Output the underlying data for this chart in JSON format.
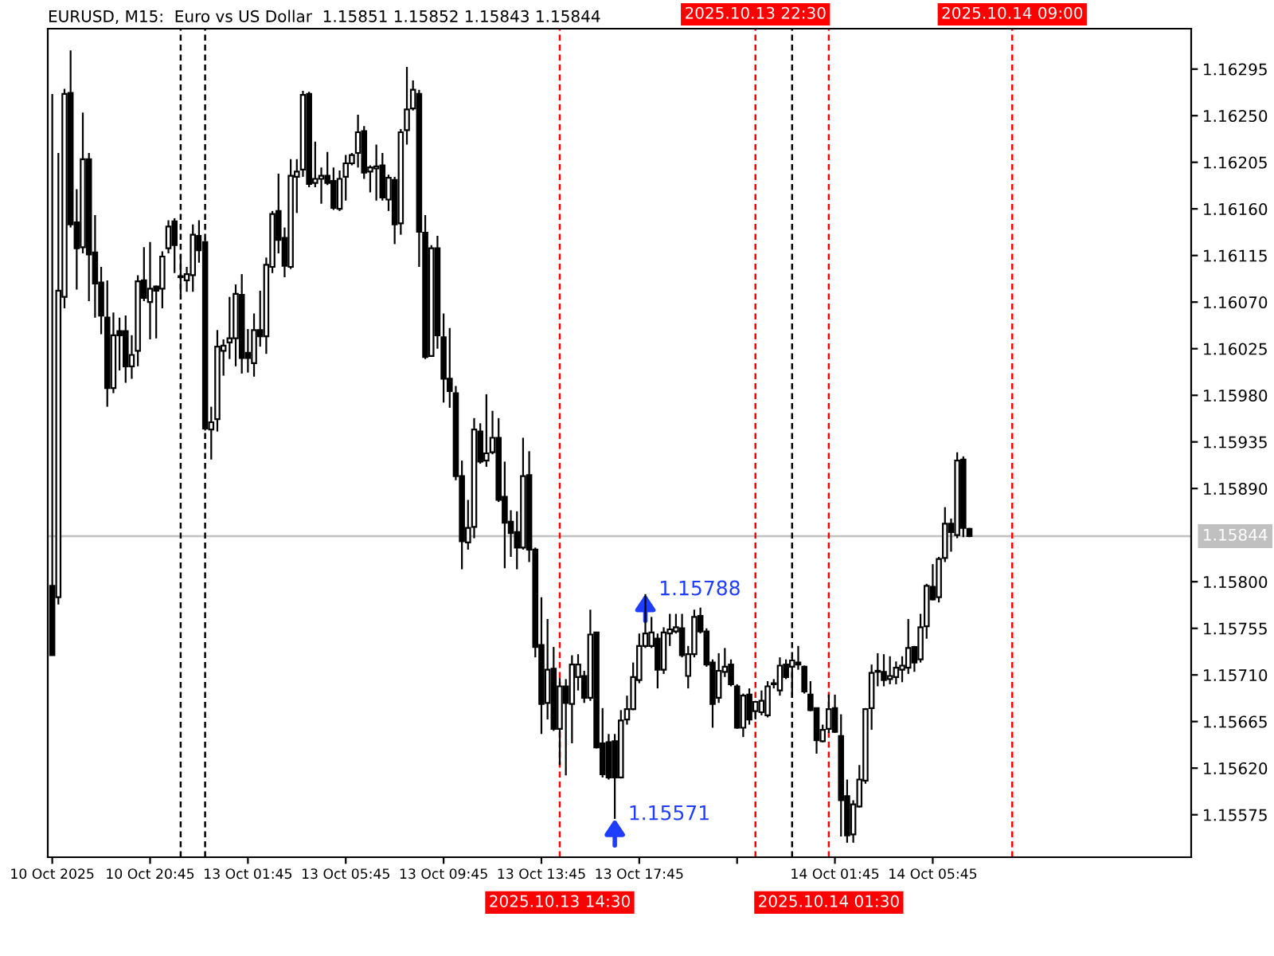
{
  "chart_data": [
    {
      "type": "candlestick",
      "title": "EURUSD, M15:  Euro vs US Dollar  1.15851 1.15852 1.15843 1.15844",
      "color": "#000000",
      "x": [
        "2025-10-10T16:45",
        "2025-10-10T17:00",
        "2025-10-10T17:15",
        "2025-10-10T17:30",
        "2025-10-10T17:45",
        "2025-10-10T18:00",
        "2025-10-10T18:15",
        "2025-10-10T18:30",
        "2025-10-10T18:45",
        "2025-10-10T19:00",
        "2025-10-10T19:15",
        "2025-10-10T19:30",
        "2025-10-10T19:45",
        "2025-10-10T20:00",
        "2025-10-10T20:15",
        "2025-10-10T20:30",
        "2025-10-10T20:45",
        "2025-10-10T21:00",
        "2025-10-10T21:15",
        "2025-10-10T21:30",
        "2025-10-10T21:45",
        "2025-10-10T22:00",
        "2025-10-10T22:15",
        "2025-10-10T22:30",
        "2025-10-10T22:45"
      ],
      "ohlc": [
        [
          1.15796,
          1.16271,
          1.15729,
          1.15729
        ],
        [
          1.15785,
          1.16214,
          1.15778,
          1.16081
        ],
        [
          1.16075,
          1.16276,
          1.16064,
          1.16271
        ],
        [
          1.16272,
          1.16313,
          1.16142,
          1.16145
        ],
        [
          1.16147,
          1.16179,
          1.16082,
          1.16122
        ],
        [
          1.16123,
          1.16253,
          1.16117,
          1.16208
        ],
        [
          1.16208,
          1.16214,
          1.16071,
          1.16116
        ],
        [
          1.16118,
          1.16154,
          1.16055,
          1.16088
        ],
        [
          1.16089,
          1.16104,
          1.16039,
          1.16057
        ],
        [
          1.16055,
          1.16091,
          1.15969,
          1.15987
        ],
        [
          1.15987,
          1.1606,
          1.15982,
          1.16038
        ],
        [
          1.16042,
          1.16055,
          1.16004,
          1.16038
        ],
        [
          1.16042,
          1.16057,
          1.15992,
          1.16008
        ],
        [
          1.16008,
          1.16038,
          1.15996,
          1.16019
        ],
        [
          1.16023,
          1.16096,
          1.16008,
          1.1609
        ],
        [
          1.16091,
          1.16123,
          1.16071,
          1.16074
        ],
        [
          1.1607,
          1.16128,
          1.16034,
          1.16083
        ],
        [
          1.16085,
          1.16086,
          1.16035,
          1.16081
        ],
        [
          1.16083,
          1.16119,
          1.16064,
          1.16114
        ],
        [
          1.16122,
          1.16149,
          1.16117,
          1.16143
        ],
        [
          1.16148,
          1.16151,
          1.16098,
          1.16125
        ],
        [
          1.16095,
          1.16116,
          1.16078,
          1.16094
        ],
        [
          1.16091,
          1.16104,
          1.1608,
          1.16097
        ],
        [
          1.16096,
          1.16145,
          1.1608,
          1.16135
        ],
        [
          1.16134,
          1.16149,
          1.16108,
          1.1612
        ]
      ],
      "xlim": [
        "2025-10-10T16:34",
        "2025-10-10T22:52"
      ],
      "xticks": [
        {
          "value": "2025-10-10T16:45",
          "label": "10 Oct 2025"
        },
        {
          "value": "2025-10-10T20:45",
          "label": "10 Oct 20:45"
        }
      ],
      "ylim": [
        1.15534,
        1.16334
      ],
      "tick_labels": "x",
      "ref_lines": [
        {
          "axis": "y",
          "value": 1.15844,
          "color": "#c0c0c0",
          "line_style": "solid"
        },
        {
          "axis": "x",
          "value": "2025-10-10T22:00",
          "color": "#000000",
          "line_style": "dashed"
        }
      ]
    },
    {
      "type": "candlestick",
      "color": "#000000",
      "x": [
        "2025-10-13T00:00",
        "2025-10-13T00:15",
        "2025-10-13T00:30",
        "2025-10-13T00:45",
        "2025-10-13T01:00",
        "2025-10-13T01:15",
        "2025-10-13T01:30",
        "2025-10-13T01:45",
        "2025-10-13T02:00",
        "2025-10-13T02:15",
        "2025-10-13T02:30",
        "2025-10-13T02:45",
        "2025-10-13T03:00",
        "2025-10-13T03:15",
        "2025-10-13T03:30",
        "2025-10-13T03:45",
        "2025-10-13T04:00",
        "2025-10-13T04:15",
        "2025-10-13T04:30",
        "2025-10-13T04:45",
        "2025-10-13T05:00",
        "2025-10-13T05:15",
        "2025-10-13T05:30",
        "2025-10-13T05:45",
        "2025-10-13T06:00",
        "2025-10-13T06:15",
        "2025-10-13T06:30",
        "2025-10-13T06:45",
        "2025-10-13T07:00",
        "2025-10-13T07:15",
        "2025-10-13T07:30",
        "2025-10-13T07:45",
        "2025-10-13T08:00",
        "2025-10-13T08:15",
        "2025-10-13T08:30",
        "2025-10-13T08:45",
        "2025-10-13T09:00",
        "2025-10-13T09:15",
        "2025-10-13T09:30",
        "2025-10-13T09:45",
        "2025-10-13T10:00",
        "2025-10-13T10:15",
        "2025-10-13T10:30",
        "2025-10-13T10:45",
        "2025-10-13T11:00",
        "2025-10-13T11:15",
        "2025-10-13T11:30",
        "2025-10-13T11:45",
        "2025-10-13T12:00",
        "2025-10-13T12:15",
        "2025-10-13T12:30",
        "2025-10-13T12:45",
        "2025-10-13T13:00",
        "2025-10-13T13:15",
        "2025-10-13T13:30",
        "2025-10-13T13:45",
        "2025-10-13T14:00",
        "2025-10-13T14:15",
        "2025-10-13T14:30",
        "2025-10-13T14:45",
        "2025-10-13T15:00",
        "2025-10-13T15:15",
        "2025-10-13T15:30",
        "2025-10-13T15:45",
        "2025-10-13T16:00",
        "2025-10-13T16:15",
        "2025-10-13T16:30",
        "2025-10-13T16:45",
        "2025-10-13T17:00",
        "2025-10-13T17:15",
        "2025-10-13T17:30",
        "2025-10-13T17:45",
        "2025-10-13T18:00",
        "2025-10-13T18:15",
        "2025-10-13T18:30",
        "2025-10-13T18:45",
        "2025-10-13T19:00",
        "2025-10-13T19:15",
        "2025-10-13T19:30",
        "2025-10-13T19:45",
        "2025-10-13T20:00",
        "2025-10-13T20:15",
        "2025-10-13T20:30",
        "2025-10-13T20:45",
        "2025-10-13T21:00",
        "2025-10-13T21:15",
        "2025-10-13T21:30",
        "2025-10-13T21:45",
        "2025-10-13T22:00",
        "2025-10-13T22:15",
        "2025-10-13T22:30",
        "2025-10-13T22:45",
        "2025-10-13T23:00",
        "2025-10-13T23:15",
        "2025-10-13T23:30",
        "2025-10-13T23:45",
        "2025-10-14T00:00",
        "2025-10-14T00:15",
        "2025-10-14T00:30",
        "2025-10-14T00:45",
        "2025-10-14T01:00",
        "2025-10-14T01:15",
        "2025-10-14T01:30",
        "2025-10-14T01:45",
        "2025-10-14T02:00",
        "2025-10-14T02:15",
        "2025-10-14T02:30",
        "2025-10-14T02:45",
        "2025-10-14T03:00",
        "2025-10-14T03:15",
        "2025-10-14T03:30",
        "2025-10-14T03:45",
        "2025-10-14T04:00",
        "2025-10-14T04:15",
        "2025-10-14T04:30",
        "2025-10-14T04:45",
        "2025-10-14T05:00",
        "2025-10-14T05:15",
        "2025-10-14T05:30",
        "2025-10-14T05:45",
        "2025-10-14T06:00",
        "2025-10-14T06:15",
        "2025-10-14T06:30",
        "2025-10-14T06:45",
        "2025-10-14T07:00",
        "2025-10-14T07:15"
      ],
      "ohlc": [
        [
          1.16128,
          1.16131,
          1.15946,
          1.15948
        ],
        [
          1.15947,
          1.15969,
          1.15918,
          1.15954
        ],
        [
          1.15957,
          1.16043,
          1.15945,
          1.16027
        ],
        [
          1.16023,
          1.16034,
          1.15999,
          1.16028
        ],
        [
          1.16031,
          1.16075,
          1.16015,
          1.16035
        ],
        [
          1.16035,
          1.16087,
          1.16008,
          1.16078
        ],
        [
          1.16077,
          1.16097,
          1.16001,
          1.16016
        ],
        [
          1.16021,
          1.16044,
          1.16002,
          1.16016
        ],
        [
          1.16011,
          1.16059,
          1.15998,
          1.16043
        ],
        [
          1.16043,
          1.16081,
          1.16027,
          1.16037
        ],
        [
          1.16037,
          1.16113,
          1.1602,
          1.16106
        ],
        [
          1.16104,
          1.16158,
          1.16098,
          1.16155
        ],
        [
          1.16158,
          1.16194,
          1.16117,
          1.1613
        ],
        [
          1.16132,
          1.16142,
          1.16094,
          1.16105
        ],
        [
          1.16104,
          1.16208,
          1.16102,
          1.16192
        ],
        [
          1.16191,
          1.16208,
          1.16156,
          1.16196
        ],
        [
          1.16198,
          1.16274,
          1.16191,
          1.1627
        ],
        [
          1.16271,
          1.16273,
          1.16181,
          1.16184
        ],
        [
          1.16185,
          1.16225,
          1.16181,
          1.16189
        ],
        [
          1.16189,
          1.162,
          1.16165,
          1.16192
        ],
        [
          1.16192,
          1.16215,
          1.16183,
          1.16185
        ],
        [
          1.16187,
          1.162,
          1.16159,
          1.16161
        ],
        [
          1.1616,
          1.16197,
          1.16158,
          1.16189
        ],
        [
          1.16191,
          1.16212,
          1.16168,
          1.16204
        ],
        [
          1.16204,
          1.16214,
          1.16202,
          1.16212
        ],
        [
          1.16214,
          1.16251,
          1.162,
          1.16234
        ],
        [
          1.16235,
          1.1624,
          1.16189,
          1.16195
        ],
        [
          1.16196,
          1.16202,
          1.16176,
          1.162
        ],
        [
          1.16199,
          1.16222,
          1.16168,
          1.16201
        ],
        [
          1.16202,
          1.16214,
          1.16168,
          1.16171
        ],
        [
          1.16169,
          1.16193,
          1.16158,
          1.1619
        ],
        [
          1.16188,
          1.16191,
          1.16126,
          1.16145
        ],
        [
          1.16146,
          1.16237,
          1.16135,
          1.16234
        ],
        [
          1.16236,
          1.16297,
          1.16222,
          1.16256
        ],
        [
          1.16257,
          1.16284,
          1.16255,
          1.16275
        ],
        [
          1.16271,
          1.16275,
          1.16104,
          1.16138
        ],
        [
          1.16137,
          1.16154,
          1.16015,
          1.16017
        ],
        [
          1.16018,
          1.16125,
          1.16018,
          1.16122
        ],
        [
          1.16122,
          1.16134,
          1.16025,
          1.16038
        ],
        [
          1.16036,
          1.16059,
          1.15973,
          1.15996
        ],
        [
          1.15996,
          1.16045,
          1.15968,
          1.15984
        ],
        [
          1.15982,
          1.15989,
          1.15898,
          1.15902
        ],
        [
          1.15902,
          1.15917,
          1.15812,
          1.15839
        ],
        [
          1.15838,
          1.15879,
          1.15831,
          1.15852
        ],
        [
          1.15853,
          1.15958,
          1.15842,
          1.15947
        ],
        [
          1.15945,
          1.15953,
          1.15914,
          1.15916
        ],
        [
          1.15917,
          1.15981,
          1.15911,
          1.15924
        ],
        [
          1.15925,
          1.15965,
          1.15923,
          1.15939
        ],
        [
          1.15939,
          1.15958,
          1.15877,
          1.15879
        ],
        [
          1.15882,
          1.15916,
          1.15813,
          1.15857
        ],
        [
          1.15858,
          1.15869,
          1.15824,
          1.15847
        ],
        [
          1.15848,
          1.15868,
          1.15812,
          1.15833
        ],
        [
          1.15833,
          1.15939,
          1.15831,
          1.15902
        ],
        [
          1.15903,
          1.15926,
          1.15819,
          1.15831
        ],
        [
          1.15831,
          1.15833,
          1.15727,
          1.15737
        ],
        [
          1.15739,
          1.15785,
          1.15653,
          1.15682
        ],
        [
          1.15683,
          1.15764,
          1.15667,
          1.15715
        ],
        [
          1.15716,
          1.15737,
          1.15656,
          1.15658
        ],
        [
          1.15658,
          1.15707,
          1.15623,
          1.15699
        ],
        [
          1.15699,
          1.15706,
          1.15613,
          1.15683
        ],
        [
          1.15682,
          1.15729,
          1.15644,
          1.1572
        ],
        [
          1.15708,
          1.1573,
          1.15695,
          1.1572
        ],
        [
          1.15709,
          1.15714,
          1.15683,
          1.15688
        ],
        [
          1.15688,
          1.15773,
          1.15685,
          1.15749
        ],
        [
          1.15751,
          1.15751,
          1.15639,
          1.1564
        ],
        [
          1.15644,
          1.15678,
          1.15611,
          1.15614
        ],
        [
          1.15645,
          1.15653,
          1.15609,
          1.15611
        ],
        [
          1.15646,
          1.15653,
          1.15571,
          1.15611
        ],
        [
          1.15611,
          1.15676,
          1.1561,
          1.15666
        ],
        [
          1.15667,
          1.1569,
          1.15662,
          1.15677
        ],
        [
          1.15677,
          1.15722,
          1.15676,
          1.15708
        ],
        [
          1.15705,
          1.1575,
          1.15702,
          1.15738
        ],
        [
          1.15738,
          1.15788,
          1.15736,
          1.1575
        ],
        [
          1.15738,
          1.15766,
          1.15736,
          1.15751
        ],
        [
          1.15745,
          1.1575,
          1.15697,
          1.15715
        ],
        [
          1.15715,
          1.15756,
          1.15711,
          1.15751
        ],
        [
          1.1575,
          1.15769,
          1.15738,
          1.15754
        ],
        [
          1.15752,
          1.15769,
          1.1575,
          1.15756
        ],
        [
          1.15755,
          1.15769,
          1.15727,
          1.15729
        ],
        [
          1.15709,
          1.15738,
          1.15697,
          1.1573
        ],
        [
          1.1573,
          1.15773,
          1.15727,
          1.15766
        ],
        [
          1.15767,
          1.15775,
          1.1575,
          1.15752
        ],
        [
          1.15752,
          1.15755,
          1.15718,
          1.1572
        ],
        [
          1.15722,
          1.15725,
          1.15659,
          1.15682
        ],
        [
          1.15688,
          1.15731,
          1.15683,
          1.15714
        ],
        [
          1.15713,
          1.15736,
          1.15708,
          1.15718
        ],
        [
          1.1572,
          1.15725,
          1.15699,
          1.15701
        ],
        [
          1.15699,
          1.15701,
          1.15658,
          1.15659
        ],
        [
          1.15659,
          1.15692,
          1.1565,
          1.1569
        ],
        [
          1.15691,
          1.15697,
          1.15662,
          1.15667
        ],
        [
          1.15675,
          1.15685,
          1.15667,
          1.15684
        ],
        [
          1.15674,
          1.15695,
          1.15671,
          1.15685
        ],
        [
          1.15671,
          1.15704,
          1.15669,
          1.15699
        ],
        [
          1.15701,
          1.15706,
          1.15697,
          1.15702
        ],
        [
          1.15695,
          1.15727,
          1.1569,
          1.15719
        ],
        [
          1.1572,
          1.15725,
          1.15706,
          1.15708
        ],
        [
          1.15718,
          1.15727,
          1.15688,
          1.15724
        ],
        [
          1.15722,
          1.15738,
          1.15715,
          1.1572
        ],
        [
          1.15718,
          1.15719,
          1.15692,
          1.15694
        ],
        [
          1.15691,
          1.15704,
          1.15675,
          1.15676
        ],
        [
          1.15678,
          1.15678,
          1.15634,
          1.15647
        ],
        [
          1.15646,
          1.15662,
          1.15645,
          1.15657
        ],
        [
          1.15658,
          1.15691,
          1.15654,
          1.15677
        ],
        [
          1.15678,
          1.15691,
          1.15654,
          1.15655
        ],
        [
          1.15651,
          1.15672,
          1.15554,
          1.15589
        ],
        [
          1.15593,
          1.15609,
          1.15548,
          1.15555
        ],
        [
          1.15556,
          1.15589,
          1.15548,
          1.15585
        ],
        [
          1.15583,
          1.15623,
          1.15582,
          1.15609
        ],
        [
          1.15608,
          1.15678,
          1.15605,
          1.15677
        ],
        [
          1.15678,
          1.1572,
          1.15657,
          1.15712
        ],
        [
          1.15713,
          1.15731,
          1.15699,
          1.15714
        ],
        [
          1.15713,
          1.1573,
          1.15699,
          1.15705
        ],
        [
          1.15706,
          1.15728,
          1.15701,
          1.15709
        ],
        [
          1.15708,
          1.15723,
          1.15701,
          1.15717
        ],
        [
          1.15715,
          1.15728,
          1.15703,
          1.15719
        ],
        [
          1.15717,
          1.15764,
          1.15711,
          1.15736
        ],
        [
          1.15737,
          1.15738,
          1.15713,
          1.15722
        ],
        [
          1.15725,
          1.15769,
          1.15722,
          1.15756
        ],
        [
          1.15757,
          1.15798,
          1.15745,
          1.15796
        ],
        [
          1.15795,
          1.15817,
          1.15782,
          1.15783
        ],
        [
          1.15785,
          1.15824,
          1.1578,
          1.15822
        ],
        [
          1.15823,
          1.15872,
          1.15819,
          1.15856
        ],
        [
          1.15856,
          1.15861,
          1.15829,
          1.15848
        ],
        [
          1.15845,
          1.15925,
          1.15842,
          1.15917
        ],
        [
          1.15918,
          1.15921,
          1.15843,
          1.15852
        ],
        [
          1.15851,
          1.15852,
          1.15843,
          1.15844
        ]
      ],
      "xlim": [
        "2025-10-12T23:52",
        "2025-10-14T16:19"
      ],
      "xticks": [
        {
          "value": "2025-10-13T01:45",
          "label": "13 Oct 01:45"
        },
        {
          "value": "2025-10-13T05:45",
          "label": "13 Oct 05:45"
        },
        {
          "value": "2025-10-13T09:45",
          "label": "13 Oct 09:45"
        },
        {
          "value": "2025-10-13T13:45",
          "label": "13 Oct 13:45"
        },
        {
          "value": "2025-10-13T17:45",
          "label": "13 Oct 17:45"
        },
        {
          "value": "2025-10-13T21:45",
          "label": null
        },
        {
          "value": "2025-10-14T01:45",
          "label": "14 Oct 01:45"
        },
        {
          "value": "2025-10-14T05:45",
          "label": "14 Oct 05:45"
        }
      ],
      "ylim": [
        1.15534,
        1.16334
      ],
      "yticks": [
        1.15575,
        {
          "value": 1.1562,
          "label": "1.15620"
        },
        1.15665,
        {
          "value": 1.1571,
          "label": "1.15710"
        },
        1.15755,
        {
          "value": 1.158,
          "label": "1.15800"
        },
        {
          "value": 1.1589,
          "label": "1.15890"
        },
        1.15935,
        {
          "value": 1.1598,
          "label": "1.15980"
        },
        1.16025,
        {
          "value": 1.1607,
          "label": "1.16070"
        },
        1.16115,
        {
          "value": 1.1616,
          "label": "1.16160"
        },
        1.16205,
        {
          "value": 1.1625,
          "label": "1.16250"
        },
        1.16295
      ],
      "ref_lines": [
        {
          "axis": "y",
          "value": 1.15844,
          "label": "1.15844",
          "color": "#c0c0c0",
          "line_style": "solid"
        },
        {
          "axis": "x",
          "value": "2025-10-13T00:00",
          "color": "#000000",
          "line_style": "dashed"
        },
        {
          "axis": "x",
          "value": "2025-10-14T00:00",
          "color": "#000000",
          "line_style": "dashed"
        },
        {
          "axis": "x",
          "value": "2025-10-13T14:30",
          "label": "2025.10.13 14:30",
          "color": "#ff0000",
          "line_style": "dashed"
        },
        {
          "axis": "x",
          "value": "2025-10-13T22:30",
          "label": "2025.10.13 22:30",
          "color": "#ff0000",
          "line_style": "dashed"
        },
        {
          "axis": "x",
          "value": "2025-10-14T01:30",
          "label": "2025.10.14 01:30",
          "color": "#ff0000",
          "line_style": "dashed"
        },
        {
          "axis": "x",
          "value": "2025-10-14T09:00",
          "label": "2025.10.14 09:00",
          "color": "#ff0000",
          "line_style": "dashed"
        }
      ],
      "annotations": [
        {
          "text": "1.15788",
          "x": "2025-10-13T18:00",
          "y": 1.15788
        },
        {
          "text": "1.15571",
          "x": "2025-10-13T16:45",
          "y": 1.15571
        }
      ]
    }
  ]
}
